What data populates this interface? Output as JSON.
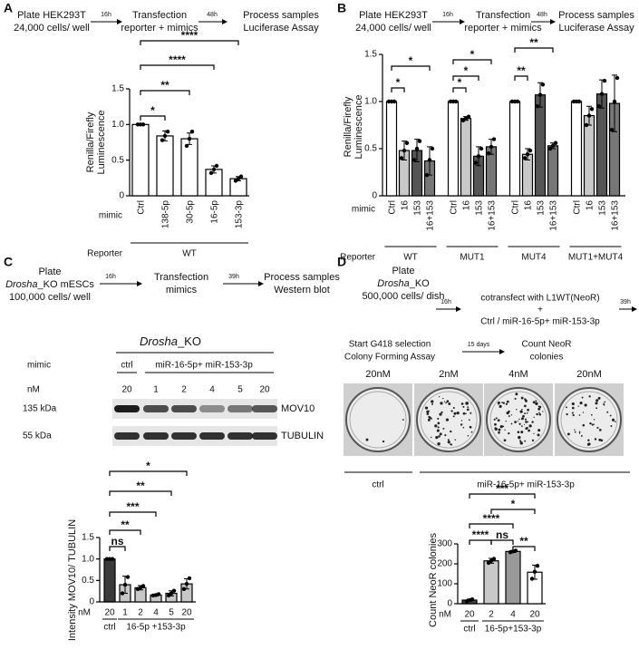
{
  "panel_labels": [
    "A",
    "B",
    "C",
    "D"
  ],
  "workflow_A": {
    "plate": "Plate HEK293T",
    "cells": "24,000 cells/ well",
    "time1": "16h",
    "step2": "Transfection",
    "step2_sub": "reporter + mimics",
    "time2": "48h",
    "step3": "Process samples",
    "step3_sub": "Luciferase Assay"
  },
  "workflow_B": {
    "plate": "Plate HEK293T",
    "cells": "24,000 cells/ well",
    "time1": "16h",
    "step2": "Transfection",
    "step2_sub": "reporter + mimics",
    "time2": "48h",
    "step3": "Process samples",
    "step3_sub": "Luciferase Assay"
  },
  "workflow_C": {
    "plate": "Plate",
    "strain": "Drosha",
    "strain_rest": "_KO mESCs",
    "cells": "100,000 cells/ well",
    "time1": "16h",
    "step2": "Transfection",
    "step2_sub": "mimics",
    "time2": "39h",
    "step3": "Process samples",
    "step3_sub": "Western blot"
  },
  "workflow_D": {
    "plate": "Plate",
    "strain": "Drosha",
    "strain_rest": "_KO",
    "cells": "500,000 cells/ dish",
    "time1": "16h",
    "step2": "cotransfect with L1WT(NeoR)",
    "plus": "+",
    "step2_sub": "Ctrl / miR-16-5p+ miR-153-3p",
    "time2": "39h",
    "step3": "Start G418 selection",
    "step3_sub": "Colony Forming Assay",
    "time3": "15 days",
    "step4": "Count NeoR",
    "step4_sub": "colonies"
  },
  "blot": {
    "strain": "Drosha",
    "strain_rest": "_KO",
    "mimic_label": "mimic",
    "ctrl": "ctrl",
    "treatment": "miR-16-5p+ miR-153-3p",
    "nM_label": "nM",
    "lanes": [
      "20",
      "1",
      "2",
      "4",
      "5",
      "20"
    ],
    "rows": [
      {
        "size": "135 kDa",
        "protein": "MOV10"
      },
      {
        "size": "55 kDa",
        "protein": "TUBULIN"
      }
    ]
  },
  "colony": {
    "dishes": [
      "20nM",
      "2nM",
      "4nM",
      "20nM"
    ],
    "ctrl": "ctrl",
    "treatment": "miR-16-5p+ miR-153-3p"
  },
  "chart_data": [
    {
      "type": "bar",
      "ylabel": [
        "Renilla/Firefly",
        "Luminescence"
      ],
      "categories": [
        "Ctrl",
        "138-5p",
        "30-5p",
        "16-5p",
        "153-3p"
      ],
      "values": [
        1,
        0.84,
        0.8,
        0.37,
        0.24
      ],
      "errors": [
        0,
        0.07,
        0.08,
        0.05,
        0.03
      ],
      "points": [
        [
          1,
          1,
          1
        ],
        [
          0.78,
          0.84,
          0.9
        ],
        [
          0.7,
          0.8,
          0.9
        ],
        [
          0.32,
          0.37,
          0.42
        ],
        [
          0.21,
          0.24,
          0.27
        ]
      ],
      "color": "#ffffff",
      "edgecolor": "#000000",
      "ylim": [
        0,
        1.5
      ],
      "yticks": [
        0,
        0.5,
        {
          "value": 1,
          "label": "1.0"
        },
        1.5
      ],
      "xlabel": "mimic",
      "group_title": "Reporter",
      "groups": [
        "WT"
      ],
      "annotations": [
        "*",
        "**",
        "****",
        "****"
      ]
    },
    {
      "type": "bar",
      "ylabel": [
        "Renilla/Firefly",
        "Luminescence"
      ],
      "categories": [
        "WT",
        "MUT1",
        "MUT4",
        "MUT1+MUT4"
      ],
      "series": [
        {
          "name": "Ctrl",
          "color": "#ffffff",
          "values": [
            1,
            1,
            1,
            1
          ],
          "errors": [
            0,
            0,
            0,
            0
          ],
          "points": [
            [
              1,
              1,
              1
            ],
            [
              1,
              1,
              1
            ],
            [
              1,
              1,
              1
            ],
            [
              1,
              1,
              1
            ]
          ]
        },
        {
          "name": "16",
          "color": "#c8c8c8",
          "values": [
            0.48,
            0.82,
            0.44,
            0.85
          ],
          "errors": [
            0.1,
            0.02,
            0.06,
            0.1
          ],
          "points": [
            [
              0.4,
              0.48,
              0.56
            ],
            [
              0.8,
              0.82,
              0.84
            ],
            [
              0.4,
              0.44,
              0.48
            ],
            [
              0.75,
              0.85,
              0.92
            ]
          ]
        },
        {
          "name": "153",
          "color": "#555555",
          "values": [
            0.48,
            0.42,
            1.07,
            1.08
          ],
          "errors": [
            0.12,
            0.1,
            0.13,
            0.15
          ],
          "points": [
            [
              0.38,
              0.5,
              0.58
            ],
            [
              0.35,
              0.42,
              0.5
            ],
            [
              0.95,
              1.07,
              1.18
            ],
            [
              0.95,
              1.08,
              1.22
            ]
          ]
        },
        {
          "name": "16+153",
          "color": "#777777",
          "values": [
            0.37,
            0.52,
            0.53,
            0.98
          ],
          "errors": [
            0.15,
            0.08,
            0.03,
            0.3
          ],
          "points": [
            [
              0.22,
              0.38,
              0.5
            ],
            [
              0.45,
              0.52,
              0.6
            ],
            [
              0.5,
              0.53,
              0.56
            ],
            [
              0.7,
              1,
              1.25
            ]
          ]
        }
      ],
      "edgecolor": "#000000",
      "ylim": [
        0,
        1.5
      ],
      "yticks": [
        0,
        0.5,
        {
          "value": 1,
          "label": "1.0"
        },
        1.5
      ],
      "xlabel": "mimic",
      "group_title": "Reporter",
      "annotations": [
        "*",
        "*",
        "*",
        "*",
        "*",
        "**",
        "**"
      ]
    },
    {
      "type": "bar",
      "ylabel": [
        "Intensity MOV10/ TUBULIN"
      ],
      "categories": [
        "20",
        "1",
        "2",
        "4",
        "5",
        "20"
      ],
      "values": [
        1,
        0.4,
        0.33,
        0.16,
        0.2,
        0.42
      ],
      "errors": [
        0,
        0.2,
        0.05,
        0.02,
        0.06,
        0.12
      ],
      "points": [
        [
          1,
          1,
          1
        ],
        [
          0.2,
          0.4,
          0.58
        ],
        [
          0.3,
          0.33,
          0.37
        ],
        [
          0.15,
          0.16,
          0.18
        ],
        [
          0.15,
          0.2,
          0.26
        ],
        [
          0.3,
          0.42,
          0.55
        ]
      ],
      "colors": [
        "#3a3a3a",
        "#c8c8c8",
        "#c8c8c8",
        "#c8c8c8",
        "#c8c8c8",
        "#c8c8c8"
      ],
      "edgecolor": "#000000",
      "ylim": [
        0,
        1.5
      ],
      "yticks": [
        0,
        0.5,
        {
          "value": 1,
          "label": "1.0"
        },
        1.5
      ],
      "xlabel": "nM",
      "groups": [
        "ctrl",
        "16-5p +153-3p"
      ],
      "annotations": [
        "ns",
        "**",
        "***",
        "**",
        "*"
      ]
    },
    {
      "type": "bar",
      "ylabel": [
        "Count NeoR colonies"
      ],
      "categories": [
        "20",
        "2",
        "4",
        "20"
      ],
      "values": [
        18,
        215,
        262,
        158
      ],
      "errors": [
        5,
        12,
        5,
        35
      ],
      "points": [
        [
          12,
          18,
          22
        ],
        [
          205,
          215,
          225
        ],
        [
          258,
          262,
          266
        ],
        [
          125,
          160,
          190
        ]
      ],
      "colors": [
        "#444444",
        "#c8c8c8",
        "#999999",
        "#ffffff"
      ],
      "edgecolor": "#000000",
      "ylim": [
        0,
        300
      ],
      "yticks": [
        0,
        100,
        200,
        300
      ],
      "xlabel": "nM",
      "groups": [
        "ctrl",
        "16-5p+153-3p"
      ],
      "annotations": [
        "****",
        "ns",
        "**",
        "****",
        "*",
        "***"
      ]
    }
  ]
}
